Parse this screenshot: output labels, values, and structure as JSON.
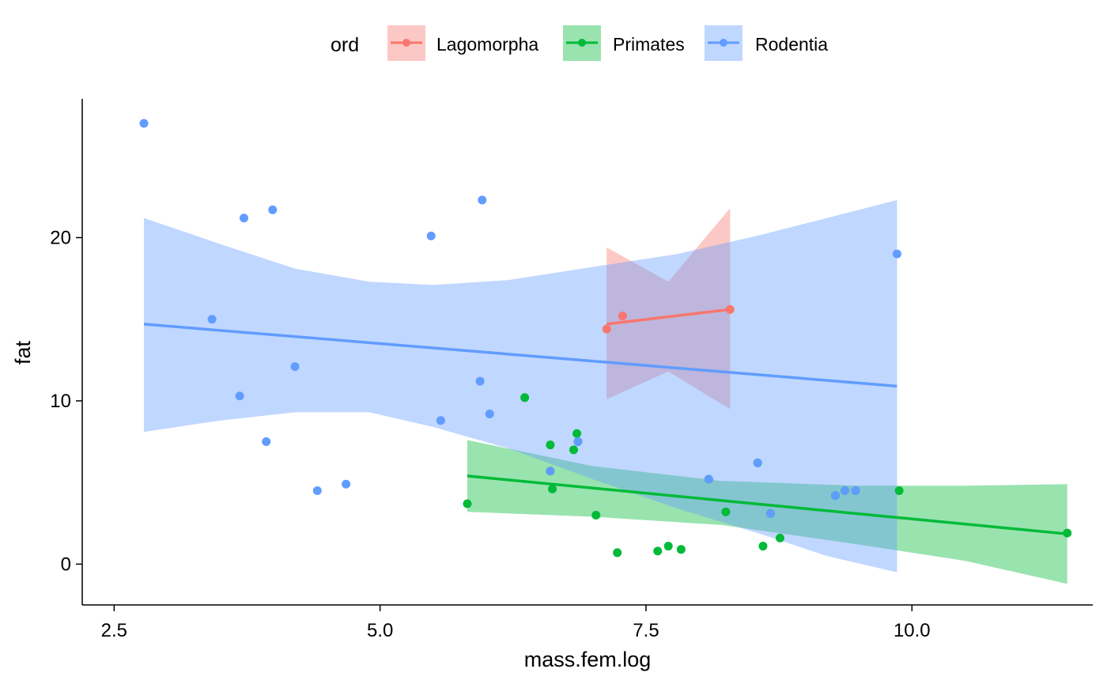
{
  "chart_data": {
    "type": "scatter",
    "title": "",
    "xlabel": "mass.fem.log",
    "ylabel": "fat",
    "xlim": [
      2.2,
      11.7
    ],
    "ylim": [
      -2.5,
      28.5
    ],
    "x_ticks": [
      2.5,
      5.0,
      7.5,
      10.0
    ],
    "x_tick_labels": [
      "2.5",
      "5.0",
      "7.5",
      "10.0"
    ],
    "y_ticks": [
      0,
      10,
      20
    ],
    "y_tick_labels": [
      "0",
      "10",
      "20"
    ],
    "grid": false,
    "legend": {
      "title": "ord",
      "position": "top",
      "entries": [
        "Lagomorpha",
        "Primates",
        "Rodentia"
      ]
    },
    "series": [
      {
        "name": "Lagomorpha",
        "color": "#F8766D",
        "fill": "#F8766D",
        "points": [
          {
            "x": 7.13,
            "y": 14.4
          },
          {
            "x": 7.28,
            "y": 15.2
          },
          {
            "x": 8.29,
            "y": 15.6
          }
        ],
        "fit": [
          {
            "x": 7.13,
            "y": 14.7
          },
          {
            "x": 8.29,
            "y": 15.6
          }
        ],
        "band": [
          {
            "x": 7.13,
            "lo": 10.1,
            "hi": 19.4
          },
          {
            "x": 7.71,
            "lo": 11.8,
            "hi": 17.3
          },
          {
            "x": 8.29,
            "lo": 9.5,
            "hi": 21.8
          }
        ]
      },
      {
        "name": "Primates",
        "color": "#00BA38",
        "fill": "#00BA38",
        "points": [
          {
            "x": 5.82,
            "y": 3.7
          },
          {
            "x": 6.36,
            "y": 10.2
          },
          {
            "x": 6.6,
            "y": 7.3
          },
          {
            "x": 6.6,
            "y": 5.7
          },
          {
            "x": 6.62,
            "y": 4.6
          },
          {
            "x": 6.82,
            "y": 7.0
          },
          {
            "x": 6.85,
            "y": 8.0
          },
          {
            "x": 6.86,
            "y": 7.5
          },
          {
            "x": 7.03,
            "y": 3.0
          },
          {
            "x": 7.23,
            "y": 0.7
          },
          {
            "x": 7.61,
            "y": 0.8
          },
          {
            "x": 7.71,
            "y": 1.1
          },
          {
            "x": 7.83,
            "y": 0.9
          },
          {
            "x": 8.09,
            "y": 5.2
          },
          {
            "x": 8.25,
            "y": 3.2
          },
          {
            "x": 8.55,
            "y": 6.2
          },
          {
            "x": 8.6,
            "y": 1.1
          },
          {
            "x": 8.67,
            "y": 3.1
          },
          {
            "x": 8.76,
            "y": 1.6
          },
          {
            "x": 9.28,
            "y": 4.2
          },
          {
            "x": 9.37,
            "y": 4.5
          },
          {
            "x": 9.47,
            "y": 4.5
          },
          {
            "x": 9.88,
            "y": 4.5
          },
          {
            "x": 11.46,
            "y": 1.9
          }
        ],
        "fit": [
          {
            "x": 5.82,
            "y": 5.4
          },
          {
            "x": 11.46,
            "y": 1.85
          }
        ],
        "band": [
          {
            "x": 5.82,
            "lo": 3.2,
            "hi": 7.6
          },
          {
            "x": 7.0,
            "lo": 2.9,
            "hi": 6.0
          },
          {
            "x": 8.2,
            "lo": 2.4,
            "hi": 5.1
          },
          {
            "x": 9.5,
            "lo": 1.2,
            "hi": 4.8
          },
          {
            "x": 10.5,
            "lo": 0.2,
            "hi": 4.8
          },
          {
            "x": 11.46,
            "lo": -1.2,
            "hi": 4.9
          }
        ]
      },
      {
        "name": "Rodentia",
        "color": "#619CFF",
        "fill": "#619CFF",
        "points": [
          {
            "x": 2.78,
            "y": 27.0
          },
          {
            "x": 3.42,
            "y": 15.0
          },
          {
            "x": 3.68,
            "y": 10.3
          },
          {
            "x": 3.72,
            "y": 21.2
          },
          {
            "x": 3.93,
            "y": 7.5
          },
          {
            "x": 3.99,
            "y": 21.7
          },
          {
            "x": 4.2,
            "y": 12.1
          },
          {
            "x": 4.41,
            "y": 4.5
          },
          {
            "x": 4.68,
            "y": 4.9
          },
          {
            "x": 5.48,
            "y": 20.1
          },
          {
            "x": 5.57,
            "y": 8.8
          },
          {
            "x": 5.94,
            "y": 11.2
          },
          {
            "x": 5.96,
            "y": 22.3
          },
          {
            "x": 6.03,
            "y": 9.2
          },
          {
            "x": 6.6,
            "y": 5.7
          },
          {
            "x": 6.86,
            "y": 7.5
          },
          {
            "x": 8.09,
            "y": 5.2
          },
          {
            "x": 8.55,
            "y": 6.2
          },
          {
            "x": 8.67,
            "y": 3.1
          },
          {
            "x": 9.28,
            "y": 4.2
          },
          {
            "x": 9.37,
            "y": 4.5
          },
          {
            "x": 9.47,
            "y": 4.5
          },
          {
            "x": 9.86,
            "y": 19.0
          }
        ],
        "fit": [
          {
            "x": 2.78,
            "y": 14.7
          },
          {
            "x": 9.86,
            "y": 10.9
          }
        ],
        "band": [
          {
            "x": 2.78,
            "lo": 8.1,
            "hi": 21.2
          },
          {
            "x": 3.5,
            "lo": 8.8,
            "hi": 19.6
          },
          {
            "x": 4.2,
            "lo": 9.3,
            "hi": 18.1
          },
          {
            "x": 4.9,
            "lo": 9.3,
            "hi": 17.3
          },
          {
            "x": 5.5,
            "lo": 8.4,
            "hi": 17.1
          },
          {
            "x": 6.2,
            "lo": 7.1,
            "hi": 17.4
          },
          {
            "x": 7.0,
            "lo": 5.2,
            "hi": 18.2
          },
          {
            "x": 7.8,
            "lo": 3.4,
            "hi": 19.0
          },
          {
            "x": 8.6,
            "lo": 1.8,
            "hi": 20.2
          },
          {
            "x": 9.2,
            "lo": 0.5,
            "hi": 21.2
          },
          {
            "x": 9.86,
            "lo": -0.5,
            "hi": 22.3
          }
        ]
      }
    ]
  }
}
